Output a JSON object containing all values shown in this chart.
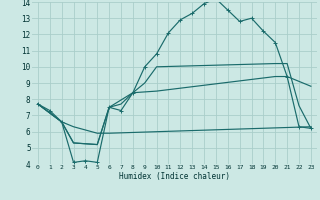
{
  "xlabel": "Humidex (Indice chaleur)",
  "xlim": [
    -0.5,
    23.5
  ],
  "ylim": [
    4,
    14
  ],
  "bg_color": "#cce8e4",
  "grid_color": "#aaceca",
  "line_color": "#1a6b6b",
  "line1_x": [
    0,
    1,
    2,
    3,
    4,
    5,
    6,
    7,
    8,
    9,
    10,
    11,
    12,
    13,
    14,
    15,
    16,
    17,
    18,
    19,
    20,
    21,
    22,
    23
  ],
  "line1_y": [
    7.7,
    7.3,
    6.6,
    4.1,
    4.2,
    4.1,
    7.5,
    7.3,
    8.4,
    10.0,
    10.8,
    12.1,
    12.9,
    13.3,
    13.9,
    14.2,
    13.5,
    12.8,
    13.0,
    12.2,
    11.5,
    9.4,
    6.3,
    6.2
  ],
  "line2_x": [
    0,
    2,
    3,
    5,
    6,
    7,
    8,
    9,
    10,
    20,
    21,
    22,
    23
  ],
  "line2_y": [
    7.7,
    6.6,
    5.3,
    5.2,
    7.5,
    7.7,
    8.4,
    9.0,
    10.0,
    10.2,
    10.2,
    7.6,
    6.2
  ],
  "line3_x": [
    0,
    2,
    3,
    5,
    6,
    8,
    10,
    20,
    21,
    23
  ],
  "line3_y": [
    7.7,
    6.6,
    5.3,
    5.2,
    7.5,
    8.4,
    8.5,
    9.4,
    9.4,
    8.8
  ],
  "line4_x": [
    0,
    2,
    3,
    5,
    6,
    23
  ],
  "line4_y": [
    7.7,
    6.6,
    6.3,
    5.9,
    5.9,
    6.3
  ]
}
